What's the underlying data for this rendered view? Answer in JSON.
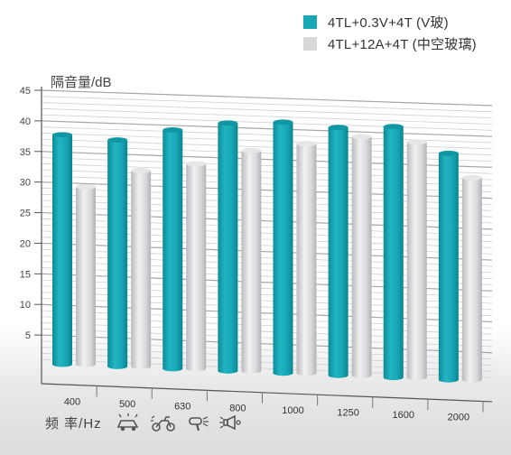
{
  "chart_data": {
    "type": "bar",
    "ylabel": "隔音量/dB",
    "xlabel": "频 率/Hz",
    "ylim": [
      0,
      45
    ],
    "yticks": [
      5,
      10,
      15,
      20,
      25,
      30,
      35,
      40,
      45
    ],
    "categories": [
      "400",
      "500",
      "630",
      "800",
      "1000",
      "1250",
      "1600",
      "2000"
    ],
    "series": [
      {
        "name": "4TL+0.3V+4T (V玻)",
        "color": "#17a7b5",
        "values": [
          37.5,
          37.0,
          39.0,
          40.5,
          41.0,
          40.5,
          41.0,
          37.0
        ]
      },
      {
        "name": "4TL+12A+4T (中空玻璃)",
        "color": "#d7d8da",
        "values": [
          29.0,
          32.0,
          33.5,
          36.0,
          37.5,
          39.0,
          38.5,
          33.0
        ]
      }
    ],
    "grid": true,
    "legend": "top-right"
  },
  "icons": [
    "car-horn-icon",
    "motorcycle-icon",
    "hair-dryer-icon",
    "loudspeaker-icon"
  ]
}
